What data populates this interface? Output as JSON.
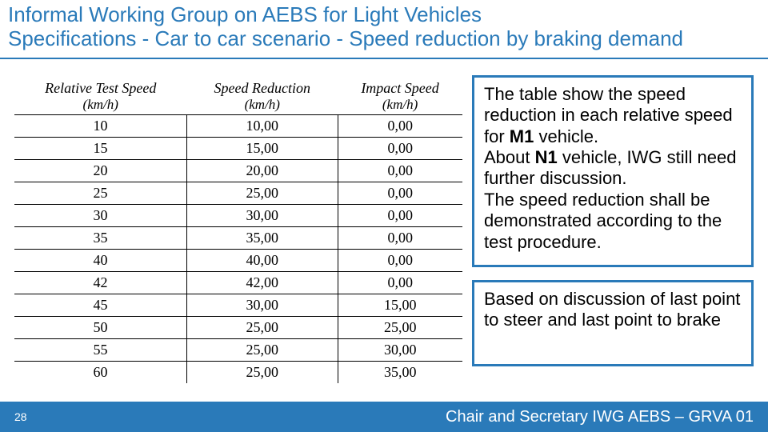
{
  "colors": {
    "accent": "#2a7ab9",
    "background": "#ffffff",
    "text": "#000000",
    "footer_text": "#ffffff"
  },
  "header": {
    "line1": "Informal Working Group on AEBS for Light Vehicles",
    "line2": "Specifications - Car to car scenario - Speed reduction by braking demand"
  },
  "table": {
    "headers": [
      {
        "label": "Relative Test Speed",
        "unit": "(km/h)"
      },
      {
        "label": "Speed Reduction",
        "unit": "(km/h)"
      },
      {
        "label": "Impact Speed",
        "unit": "(km/h)"
      }
    ],
    "rows": [
      [
        "10",
        "10,00",
        "0,00"
      ],
      [
        "15",
        "15,00",
        "0,00"
      ],
      [
        "20",
        "20,00",
        "0,00"
      ],
      [
        "25",
        "25,00",
        "0,00"
      ],
      [
        "30",
        "30,00",
        "0,00"
      ],
      [
        "35",
        "35,00",
        "0,00"
      ],
      [
        "40",
        "40,00",
        "0,00"
      ],
      [
        "42",
        "42,00",
        "0,00"
      ],
      [
        "45",
        "30,00",
        "15,00"
      ],
      [
        "50",
        "25,00",
        "25,00"
      ],
      [
        "55",
        "25,00",
        "30,00"
      ],
      [
        "60",
        "25,00",
        "35,00"
      ]
    ]
  },
  "callouts": {
    "box1": {
      "p1a": "The table show the speed reduction in each relative speed for ",
      "p1b": "M1",
      "p1c": " vehicle.",
      "p2a": "About ",
      "p2b": "N1",
      "p2c": " vehicle, IWG still need further discussion.",
      "p3": "The speed reduction shall be demonstrated according to the test procedure."
    },
    "box2": {
      "text": "Based on discussion of last point to steer and last point to brake"
    }
  },
  "footer": {
    "page": "28",
    "text": "Chair and Secretary IWG AEBS – GRVA 01"
  }
}
